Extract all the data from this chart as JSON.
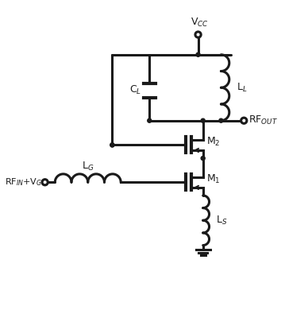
{
  "bg_color": "#ffffff",
  "line_color": "#1a1a1a",
  "line_width": 2.2,
  "fig_width": 3.88,
  "fig_height": 3.9,
  "labels": {
    "VCC": "V$_{CC}$",
    "CL": "C$_L$",
    "LL": "L$_L$",
    "RFOUT": "RF$_{OUT}$",
    "M2": "M$_2$",
    "RFIN": "RF$_{IN}$+V$_G$",
    "LG": "L$_G$",
    "M1": "M$_1$",
    "LS": "L$_S$"
  }
}
